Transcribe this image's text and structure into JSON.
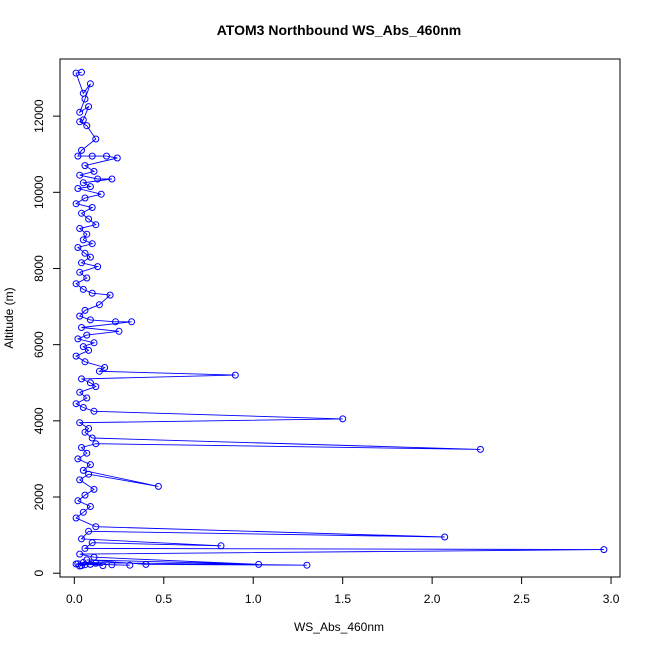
{
  "chart_data": {
    "type": "line",
    "title": "ATOM3 Northbound WS_Abs_460nm",
    "xlabel": "WS_Abs_460nm",
    "ylabel": "Altitude (m)",
    "xlim": [
      -0.08,
      3.05
    ],
    "ylim": [
      -100,
      13500
    ],
    "xticks": [
      0.0,
      0.5,
      1.0,
      1.5,
      2.0,
      2.5,
      3.0
    ],
    "xtick_labels": [
      "0.0",
      "0.5",
      "1.0",
      "1.5",
      "2.0",
      "2.5",
      "3.0"
    ],
    "yticks": [
      0,
      2000,
      4000,
      6000,
      8000,
      10000,
      12000
    ],
    "ytick_labels": [
      "0",
      "2000",
      "4000",
      "6000",
      "8000",
      "10000",
      "12000"
    ],
    "grid": false,
    "legend": "none",
    "series": [
      {
        "color": "#0000ff",
        "points": [
          [
            0.04,
            13150
          ],
          [
            0.01,
            13130
          ],
          [
            0.05,
            12600
          ],
          [
            0.09,
            12850
          ],
          [
            0.06,
            12450
          ],
          [
            0.03,
            12100
          ],
          [
            0.08,
            12250
          ],
          [
            0.05,
            11900
          ],
          [
            0.03,
            11850
          ],
          [
            0.07,
            11750
          ],
          [
            0.12,
            11400
          ],
          [
            0.04,
            11100
          ],
          [
            0.02,
            10950
          ],
          [
            0.1,
            10950
          ],
          [
            0.18,
            10950
          ],
          [
            0.24,
            10900
          ],
          [
            0.06,
            10700
          ],
          [
            0.11,
            10550
          ],
          [
            0.03,
            10450
          ],
          [
            0.13,
            10350
          ],
          [
            0.21,
            10350
          ],
          [
            0.05,
            10250
          ],
          [
            0.09,
            10150
          ],
          [
            0.02,
            10100
          ],
          [
            0.15,
            9950
          ],
          [
            0.06,
            9850
          ],
          [
            0.01,
            9700
          ],
          [
            0.1,
            9600
          ],
          [
            0.04,
            9450
          ],
          [
            0.08,
            9300
          ],
          [
            0.12,
            9150
          ],
          [
            0.03,
            9050
          ],
          [
            0.07,
            8900
          ],
          [
            0.05,
            8750
          ],
          [
            0.1,
            8650
          ],
          [
            0.02,
            8550
          ],
          [
            0.06,
            8400
          ],
          [
            0.09,
            8300
          ],
          [
            0.04,
            8150
          ],
          [
            0.13,
            8050
          ],
          [
            0.03,
            7900
          ],
          [
            0.07,
            7750
          ],
          [
            0.01,
            7600
          ],
          [
            0.05,
            7450
          ],
          [
            0.1,
            7350
          ],
          [
            0.2,
            7300
          ],
          [
            0.14,
            7050
          ],
          [
            0.06,
            6900
          ],
          [
            0.03,
            6750
          ],
          [
            0.09,
            6650
          ],
          [
            0.23,
            6600
          ],
          [
            0.32,
            6600
          ],
          [
            0.04,
            6450
          ],
          [
            0.25,
            6350
          ],
          [
            0.07,
            6250
          ],
          [
            0.02,
            6150
          ],
          [
            0.11,
            6050
          ],
          [
            0.05,
            5950
          ],
          [
            0.08,
            5850
          ],
          [
            0.01,
            5700
          ],
          [
            0.06,
            5550
          ],
          [
            0.17,
            5400
          ],
          [
            0.14,
            5300
          ],
          [
            0.9,
            5200
          ],
          [
            0.04,
            5100
          ],
          [
            0.09,
            5000
          ],
          [
            0.12,
            4900
          ],
          [
            0.03,
            4750
          ],
          [
            0.07,
            4600
          ],
          [
            0.01,
            4450
          ],
          [
            0.05,
            4350
          ],
          [
            0.11,
            4250
          ],
          [
            1.5,
            4050
          ],
          [
            0.03,
            3950
          ],
          [
            0.08,
            3800
          ],
          [
            0.06,
            3700
          ],
          [
            0.1,
            3550
          ],
          [
            2.27,
            3250
          ],
          [
            0.12,
            3400
          ],
          [
            0.04,
            3300
          ],
          [
            0.07,
            3150
          ],
          [
            0.02,
            3000
          ],
          [
            0.09,
            2850
          ],
          [
            0.05,
            2700
          ],
          [
            0.47,
            2280
          ],
          [
            0.08,
            2600
          ],
          [
            0.03,
            2450
          ],
          [
            0.11,
            2200
          ],
          [
            0.06,
            2050
          ],
          [
            0.02,
            1900
          ],
          [
            0.09,
            1750
          ],
          [
            0.05,
            1600
          ],
          [
            0.01,
            1450
          ],
          [
            0.12,
            1220
          ],
          [
            2.07,
            950
          ],
          [
            0.08,
            1100
          ],
          [
            0.04,
            900
          ],
          [
            0.82,
            720
          ],
          [
            0.1,
            800
          ],
          [
            0.06,
            650
          ],
          [
            2.96,
            620
          ],
          [
            0.03,
            500
          ],
          [
            0.11,
            420
          ],
          [
            1.03,
            230
          ],
          [
            0.07,
            350
          ],
          [
            0.4,
            230
          ],
          [
            1.3,
            210
          ],
          [
            0.05,
            280
          ],
          [
            0.21,
            220
          ],
          [
            0.31,
            210
          ],
          [
            0.02,
            250
          ],
          [
            0.16,
            200
          ],
          [
            0.09,
            230
          ],
          [
            0.04,
            200
          ],
          [
            0.12,
            260
          ],
          [
            0.01,
            240
          ],
          [
            0.06,
            220
          ],
          [
            0.03,
            190
          ]
        ]
      }
    ]
  }
}
